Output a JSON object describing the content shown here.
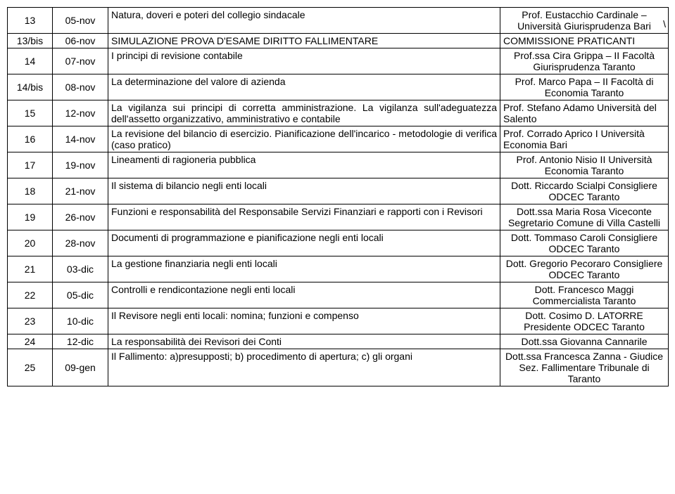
{
  "rows": [
    {
      "num": "13",
      "date": "05-nov",
      "topic": "Natura, doveri e poteri del collegio sindacale",
      "speaker": "Prof. Eustacchio Cardinale – Università Giurisprudenza Bari"
    },
    {
      "num": "13/bis",
      "date": "06-nov",
      "topic": "SIMULAZIONE PROVA D'ESAME DIRITTO FALLIMENTARE",
      "speaker": "COMMISSIONE PRATICANTI"
    },
    {
      "num": "14",
      "date": "07-nov",
      "topic": "I principi di revisione contabile",
      "speaker": "Prof.ssa Cira Grippa – II Facoltà Giurisprudenza Taranto"
    },
    {
      "num": "14/bis",
      "date": "08-nov",
      "topic": "La determinazione del valore di azienda",
      "speaker": "Prof. Marco Papa – II Facoltà di Economia Taranto"
    },
    {
      "num": "15",
      "date": "12-nov",
      "topic": "La vigilanza sui principi di corretta amministrazione. La vigilanza sull'adeguatezza dell'assetto organizzativo, amministrativo e contabile",
      "speaker": "Prof. Stefano Adamo Università del Salento"
    },
    {
      "num": "16",
      "date": "14-nov",
      "topic": "La revisione del bilancio di esercizio. Pianificazione dell'incarico - metodologie di verifica (caso pratico)",
      "speaker": "Prof. Corrado Aprico I Università Economia Bari"
    },
    {
      "num": "17",
      "date": "19-nov",
      "topic": "Lineamenti di ragioneria pubblica",
      "speaker": "Prof. Antonio Nisio     II Università Economia Taranto"
    },
    {
      "num": "18",
      "date": "21-nov",
      "topic": "Il sistema di bilancio negli enti locali",
      "speaker": "Dott. Riccardo Scialpi Consigliere ODCEC Taranto"
    },
    {
      "num": "19",
      "date": "26-nov",
      "topic": "Funzioni e responsabilità del Responsabile Servizi Finanziari e rapporti con i Revisori",
      "speaker": "Dott.ssa Maria Rosa Viceconte Segretario Comune di Villa Castelli"
    },
    {
      "num": "20",
      "date": "28-nov",
      "topic": "Documenti di programmazione e pianificazione negli enti locali",
      "speaker": "Dott. Tommaso Caroli Consigliere  ODCEC Taranto"
    },
    {
      "num": "21",
      "date": "03-dic",
      "topic": "La gestione finanziaria negli enti locali",
      "speaker": "Dott. Gregorio Pecoraro Consigliere  ODCEC Taranto"
    },
    {
      "num": "22",
      "date": "05-dic",
      "topic": "Controlli e rendicontazione negli enti locali",
      "speaker": "Dott. Francesco Maggi Commercialista Taranto"
    },
    {
      "num": "23",
      "date": "10-dic",
      "topic": "Il Revisore negli enti locali: nomina; funzioni e compenso",
      "speaker": "Dott. Cosimo D. LATORRE Presidente  ODCEC Taranto"
    },
    {
      "num": "24",
      "date": "12-dic",
      "topic": "La responsabilità dei Revisori dei Conti",
      "speaker": "Dott.ssa Giovanna Cannarile"
    },
    {
      "num": "25",
      "date": "09-gen",
      "topic": "Il Fallimento: a)presupposti; b) procedimento di apertura; c) gli organi",
      "speaker": "Dott.ssa Francesca Zanna - Giudice Sez. Fallimentare Tribunale di Taranto"
    }
  ],
  "slash": "\\"
}
